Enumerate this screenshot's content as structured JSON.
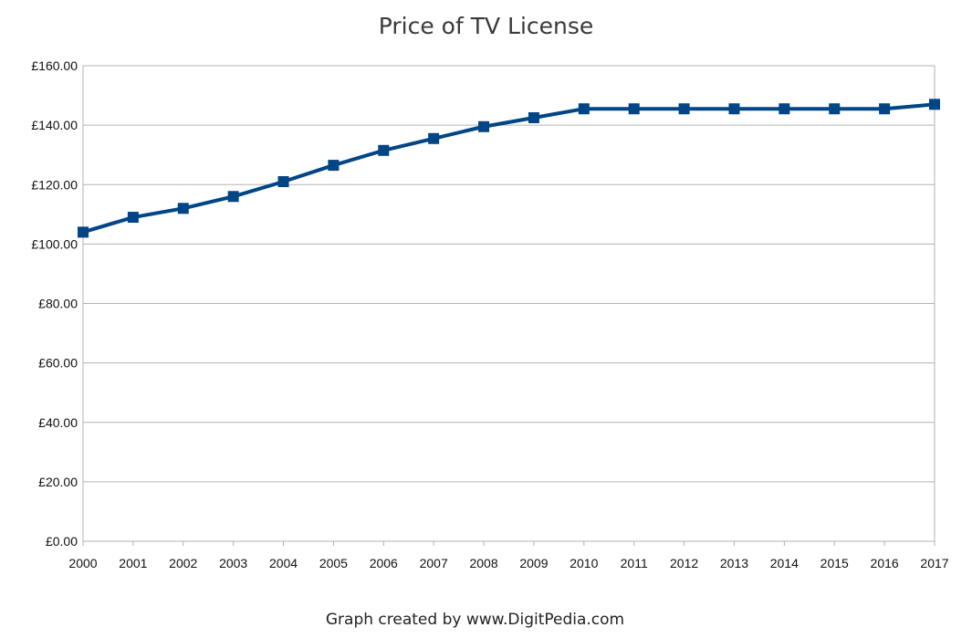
{
  "footer": {
    "credit": "Graph created by www.DigitPedia.com"
  },
  "chart_data": {
    "type": "line",
    "title": "Price of TV License",
    "xlabel": "",
    "ylabel": "",
    "categories": [
      "2000",
      "2001",
      "2002",
      "2003",
      "2004",
      "2005",
      "2006",
      "2007",
      "2008",
      "2009",
      "2010",
      "2011",
      "2012",
      "2013",
      "2014",
      "2015",
      "2016",
      "2017"
    ],
    "series": [
      {
        "values": [
          104,
          109,
          112,
          116,
          121,
          126.5,
          131.5,
          135.5,
          139.5,
          142.5,
          145.5,
          145.5,
          145.5,
          145.5,
          145.5,
          145.5,
          145.5,
          147
        ]
      }
    ],
    "ylim": [
      0,
      160
    ],
    "y_ticks": [
      0,
      20,
      40,
      60,
      80,
      100,
      120,
      140,
      160
    ],
    "y_tick_labels": [
      "£0.00",
      "£20.00",
      "£40.00",
      "£60.00",
      "£80.00",
      "£100.00",
      "£120.00",
      "£140.00",
      "£160.00"
    ],
    "grid": true,
    "legend": "none",
    "colors": {
      "series": "#004586",
      "grid": "#b3b3b3",
      "axis": "#b3b3b3"
    },
    "marker": "square"
  }
}
